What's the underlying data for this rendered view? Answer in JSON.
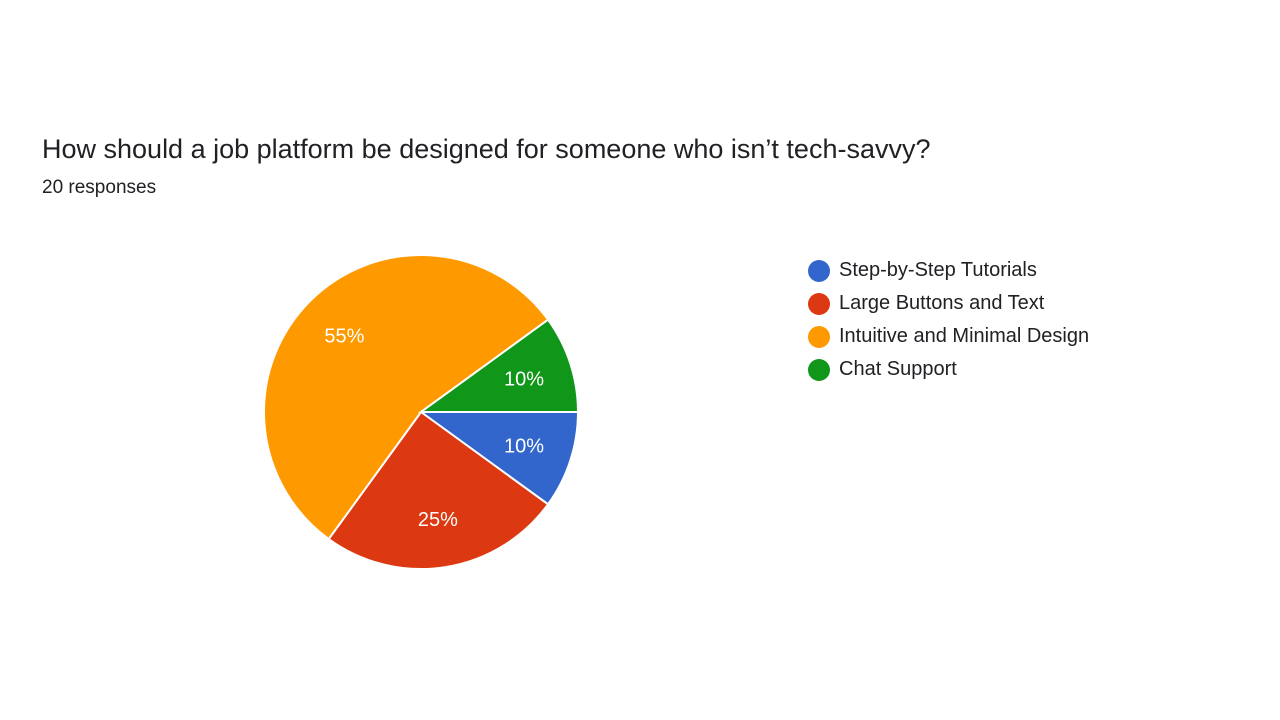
{
  "header": {
    "title": "How should a job platform be designed for someone who isn’t tech-savvy?",
    "responses": "20 responses"
  },
  "chart_data": {
    "type": "pie",
    "title": "How should a job platform be designed for someone who isn’t tech-savvy?",
    "legend_position": "right",
    "slices": [
      {
        "label": "Step-by-Step Tutorials",
        "value": 10,
        "display": "10%",
        "color": "#3366cc"
      },
      {
        "label": "Large Buttons and Text",
        "value": 25,
        "display": "25%",
        "color": "#dc3912"
      },
      {
        "label": "Intuitive and Minimal Design",
        "value": 55,
        "display": "55%",
        "color": "#ff9900"
      },
      {
        "label": "Chat Support",
        "value": 10,
        "display": "10%",
        "color": "#109618"
      }
    ]
  }
}
